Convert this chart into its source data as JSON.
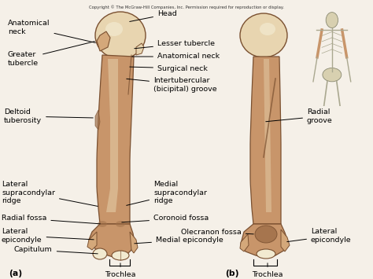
{
  "title": "Copyright © The McGraw-Hill Companies, Inc. Permission required for reproduction or display.",
  "bg_color": "#f5f0e8",
  "bone_color": "#c8956a",
  "bone_mid": "#d4a87a",
  "bone_light": "#e8d5b0",
  "bone_white": "#f2ead0",
  "bone_dark": "#a0704a",
  "edge_color": "#7a5030",
  "text_color": "#000000",
  "label_fontsize": 6.8,
  "label_a": "(a)",
  "label_b": "(b)"
}
